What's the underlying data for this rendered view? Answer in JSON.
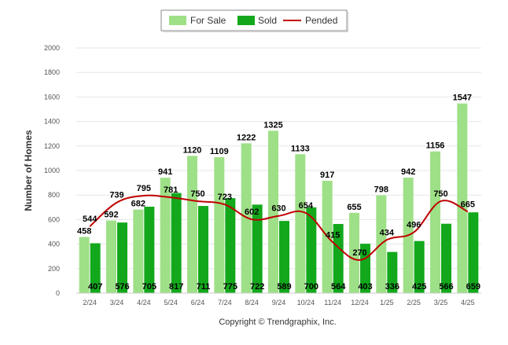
{
  "chart_data": {
    "type": "bar",
    "ylabel": "Number of Homes",
    "ylim": [
      0,
      2000
    ],
    "yticks": [
      0,
      200,
      400,
      600,
      800,
      1000,
      1200,
      1400,
      1600,
      1800,
      2000
    ],
    "grid": true,
    "legend_position": "top-center",
    "categories": [
      "2/24",
      "3/24",
      "4/24",
      "5/24",
      "6/24",
      "7/24",
      "8/24",
      "9/24",
      "10/24",
      "11/24",
      "12/24",
      "1/25",
      "2/25",
      "3/25",
      "4/25"
    ],
    "series": [
      {
        "name": "For Sale",
        "kind": "bar",
        "color": "#9ee087",
        "values": [
          458,
          592,
          682,
          941,
          1120,
          1109,
          1222,
          1325,
          1133,
          917,
          655,
          798,
          942,
          1156,
          1547
        ]
      },
      {
        "name": "Sold",
        "kind": "bar",
        "color": "#13a81c",
        "values": [
          407,
          576,
          705,
          817,
          711,
          775,
          722,
          589,
          700,
          564,
          403,
          336,
          425,
          566,
          659
        ]
      },
      {
        "name": "Pended",
        "kind": "line",
        "color": "#c00000",
        "values": [
          544,
          739,
          795,
          781,
          750,
          723,
          602,
          630,
          654,
          415,
          270,
          434,
          496,
          750,
          665
        ]
      }
    ]
  },
  "footer": {
    "copyright": "Copyright © Trendgraphix, Inc."
  }
}
